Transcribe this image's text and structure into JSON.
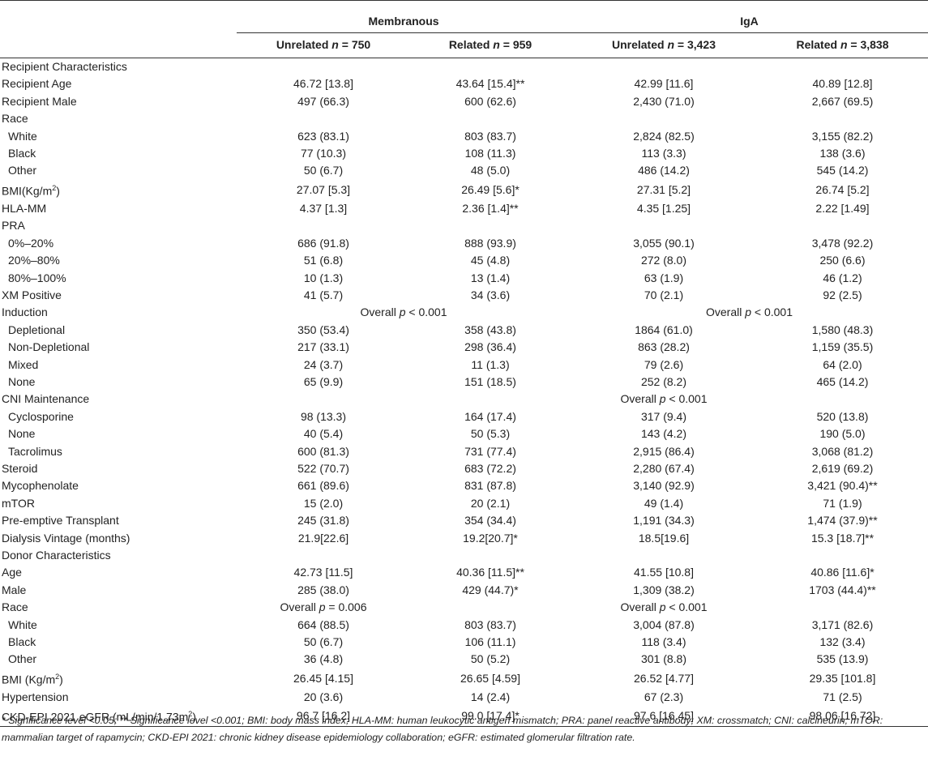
{
  "groups": [
    "Membranous",
    "IgA"
  ],
  "subheads": [
    {
      "text": "Unrelated ",
      "n": "750"
    },
    {
      "text": "Related ",
      "n": "959"
    },
    {
      "text": "Unrelated ",
      "n": "3,423"
    },
    {
      "text": "Related ",
      "n": "3,838"
    }
  ],
  "rows": [
    {
      "label": "Recipient Characteristics",
      "header": true
    },
    {
      "label": "Recipient Age",
      "vals": [
        "46.72 [13.8]",
        "43.64 [15.4]**",
        "42.99 [11.6]",
        "40.89 [12.8]"
      ]
    },
    {
      "label": "Recipient Male",
      "vals": [
        "497 (66.3)",
        "600 (62.6)",
        "2,430 (71.0)",
        "2,667 (69.5)"
      ]
    },
    {
      "label": "Race",
      "header": true
    },
    {
      "label": "White",
      "indent": true,
      "vals": [
        "623 (83.1)",
        "803 (83.7)",
        "2,824 (82.5)",
        "3,155 (82.2)"
      ]
    },
    {
      "label": "Black",
      "indent": true,
      "vals": [
        "77 (10.3)",
        "108 (11.3)",
        "113 (3.3)",
        "138 (3.6)"
      ]
    },
    {
      "label": "Other",
      "indent": true,
      "vals": [
        "50 (6.7)",
        "48 (5.0)",
        "486 (14.2)",
        "545 (14.2)"
      ]
    },
    {
      "label": "BMI(Kg/m",
      "sup": "2",
      "label_after": ")",
      "vals": [
        "27.07 [5.3]",
        "26.49 [5.6]*",
        "27.31 [5.2]",
        "26.74 [5.2]"
      ]
    },
    {
      "label": "HLA-MM",
      "vals": [
        "4.37 [1.3]",
        "2.36 [1.4]**",
        "4.35 [1.25]",
        "2.22 [1.49]"
      ]
    },
    {
      "label": "PRA",
      "header": true
    },
    {
      "label": "0%–20%",
      "indent": true,
      "vals": [
        "686 (91.8)",
        "888 (93.9)",
        "3,055 (90.1)",
        "3,478 (92.2)"
      ]
    },
    {
      "label": "20%–80%",
      "indent": true,
      "vals": [
        "51 (6.8)",
        "45 (4.8)",
        "272 (8.0)",
        "250 (6.6)"
      ]
    },
    {
      "label": "80%–100%",
      "indent": true,
      "vals": [
        "10 (1.3)",
        "13 (1.4)",
        "63 (1.9)",
        "46 (1.2)"
      ]
    },
    {
      "label": "XM Positive",
      "vals": [
        "41 (5.7)",
        "34 (3.6)",
        "70 (2.1)",
        "92 (2.5)"
      ]
    },
    {
      "label": "Induction",
      "overall": [
        {
          "pre": "Overall ",
          "p": "p",
          "post": " < 0.001",
          "start": 1,
          "span": 2
        },
        {
          "pre": "Overall ",
          "p": "p",
          "post": " < 0.001",
          "start": 3,
          "span": 2
        }
      ]
    },
    {
      "label": "Depletional",
      "indent": true,
      "vals": [
        "350 (53.4)",
        "358 (43.8)",
        "1864 (61.0)",
        "1,580 (48.3)"
      ]
    },
    {
      "label": "Non-Depletional",
      "indent": true,
      "vals": [
        "217 (33.1)",
        "298 (36.4)",
        "863 (28.2)",
        "1,159 (35.5)"
      ]
    },
    {
      "label": "Mixed",
      "indent": true,
      "vals": [
        "24 (3.7)",
        "11 (1.3)",
        "79 (2.6)",
        "64 (2.0)"
      ]
    },
    {
      "label": "None",
      "indent": true,
      "vals": [
        "65 (9.9)",
        "151 (18.5)",
        "252 (8.2)",
        "465 (14.2)"
      ]
    },
    {
      "label": "CNI Maintenance",
      "overall": [
        {
          "pre": "Overall ",
          "p": "p",
          "post": " < 0.001",
          "start": 3,
          "span": 1
        }
      ]
    },
    {
      "label": "Cyclosporine",
      "indent": true,
      "vals": [
        "98 (13.3)",
        "164 (17.4)",
        "317 (9.4)",
        "520 (13.8)"
      ]
    },
    {
      "label": "None",
      "indent": true,
      "vals": [
        "40 (5.4)",
        "50 (5.3)",
        "143 (4.2)",
        "190 (5.0)"
      ]
    },
    {
      "label": "Tacrolimus",
      "indent": true,
      "vals": [
        "600 (81.3)",
        "731 (77.4)",
        "2,915 (86.4)",
        "3,068 (81.2)"
      ]
    },
    {
      "label": "Steroid",
      "vals": [
        "522 (70.7)",
        "683 (72.2)",
        "2,280 (67.4)",
        "2,619 (69.2)"
      ]
    },
    {
      "label": "Mycophenolate",
      "vals": [
        "661 (89.6)",
        "831 (87.8)",
        "3,140 (92.9)",
        "3,421 (90.4)**"
      ]
    },
    {
      "label": "mTOR",
      "vals": [
        "15 (2.0)",
        "20 (2.1)",
        "49 (1.4)",
        "71 (1.9)"
      ]
    },
    {
      "label": "Pre-emptive Transplant",
      "vals": [
        "245 (31.8)",
        "354 (34.4)",
        "1,191 (34.3)",
        "1,474 (37.9)**"
      ]
    },
    {
      "label": "Dialysis Vintage (months)",
      "vals": [
        "21.9[22.6]",
        "19.2[20.7]*",
        "18.5[19.6]",
        "15.3 [18.7]**"
      ]
    },
    {
      "label": "Donor Characteristics",
      "header": true
    },
    {
      "label": "Age",
      "vals": [
        "42.73 [11.5]",
        "40.36 [11.5]**",
        "41.55 [10.8]",
        "40.86 [11.6]*"
      ]
    },
    {
      "label": "Male",
      "vals": [
        "285 (38.0)",
        "429 (44.7)*",
        "1,309 (38.2)",
        "1703 (44.4)**"
      ]
    },
    {
      "label": "Race",
      "overall": [
        {
          "pre": "Overall ",
          "p": "p",
          "post": " = 0.006",
          "start": 1,
          "span": 1
        },
        {
          "pre": "Overall ",
          "p": "p",
          "post": " < 0.001",
          "start": 3,
          "span": 1
        }
      ]
    },
    {
      "label": "White",
      "indent": true,
      "vals": [
        "664 (88.5)",
        "803 (83.7)",
        "3,004 (87.8)",
        "3,171 (82.6)"
      ]
    },
    {
      "label": "Black",
      "indent": true,
      "vals": [
        "50 (6.7)",
        "106 (11.1)",
        "118 (3.4)",
        "132 (3.4)"
      ]
    },
    {
      "label": "Other",
      "indent": true,
      "vals": [
        "36 (4.8)",
        "50 (5.2)",
        "301 (8.8)",
        "535 (13.9)"
      ]
    },
    {
      "label": "BMI (Kg/m",
      "sup": "2",
      "label_after": ")",
      "vals": [
        "26.45 [4.15]",
        "26.65 [4.59]",
        "26.52 [4.77]",
        "29.35 [101.8]"
      ]
    },
    {
      "label": "Hypertension",
      "vals": [
        "20 (3.6)",
        "14 (2.4)",
        "67 (2.3)",
        "71 (2.5)"
      ]
    },
    {
      "label": "CKD-EPI 2021 eGFR (mL/min/1.73m",
      "sup": "2",
      "label_after": ")",
      "vals": [
        "96.7 [16.2]",
        "99.0 [17.4]*",
        "97.6 [16.45]",
        "98.06 [16.72]"
      ]
    }
  ],
  "footnote": "* Significance level <0.05; ** Significance level <0.001; BMI: body mass index; HLA-MM: human leukocytic antigen mismatch; PRA: panel reactive antibody; XM: crossmatch; CNI: calcineurin; mTOR: mammalian target of rapamycin; CKD-EPI 2021: chronic kidney disease epidemiology collaboration; eGFR: estimated glomerular filtration rate."
}
